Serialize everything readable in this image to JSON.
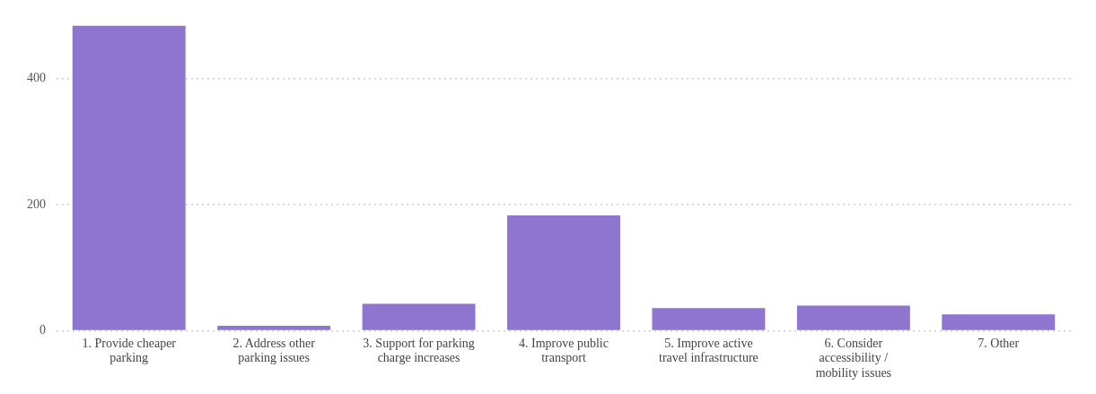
{
  "chart_data": {
    "type": "bar",
    "categories": [
      "1. Provide cheaper parking",
      "2. Address other parking issues",
      "3. Support for parking charge increases",
      "4. Improve public transport",
      "5. Improve active travel infrastructure",
      "6. Consider accessibility / mobility issues",
      "7. Other"
    ],
    "values": [
      484,
      8,
      43,
      183,
      36,
      40,
      26
    ],
    "color": "#8e75cf",
    "ylim": [
      0,
      484
    ],
    "yticks": [
      0,
      200,
      400
    ],
    "grid": "y"
  }
}
